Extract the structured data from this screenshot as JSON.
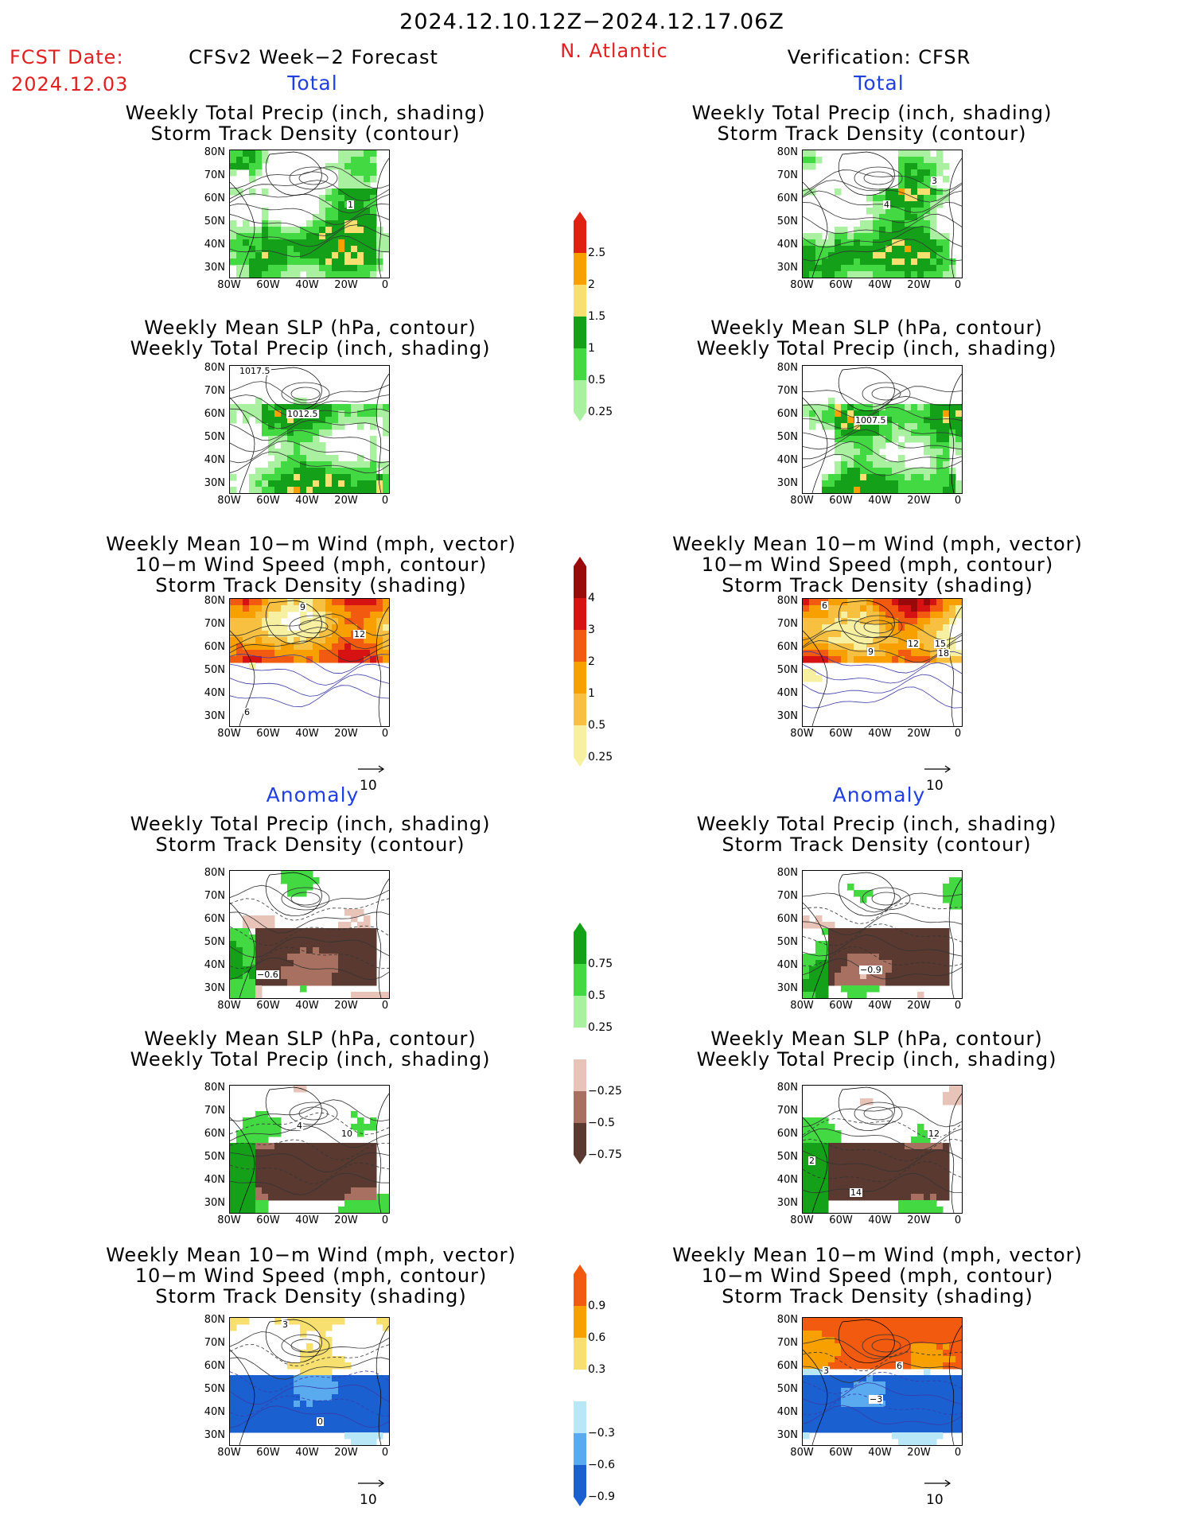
{
  "header": {
    "title": "2024.12.10.12Z−2024.12.17.06Z",
    "fcst_label": "FCST Date:",
    "fcst_date": "2024.12.03",
    "region": "N. Atlantic",
    "left_header": "CFSv2 Week−2 Forecast",
    "right_header": "Verification: CFSR"
  },
  "sections": {
    "total": "Total",
    "anomaly": "Anomaly"
  },
  "titles": {
    "precip_track": [
      "Weekly Total Precip (inch, shading)",
      "Storm Track Density (contour)"
    ],
    "slp_precip": [
      "Weekly Mean SLP (hPa, contour)",
      "Weekly Total Precip (inch, shading)"
    ],
    "wind_track": [
      "Weekly Mean 10−m Wind (mph, vector)",
      "10−m Wind Speed (mph, contour)",
      "Storm Track Density (shading)"
    ]
  },
  "axes": {
    "lat": [
      "80N",
      "70N",
      "60N",
      "50N",
      "40N",
      "30N"
    ],
    "lon": [
      "80W",
      "60W",
      "40W",
      "20W",
      "0"
    ]
  },
  "vector_ref": "10",
  "colorbars": {
    "precip_total": {
      "labels": [
        "2.5",
        "2",
        "1.5",
        "1",
        "0.5",
        "0.25"
      ],
      "colors": [
        "#e02010",
        "#f7a000",
        "#f7e070",
        "#15a01a",
        "#43d943",
        "#a9f0a0"
      ]
    },
    "track_total": {
      "labels": [
        "4",
        "3",
        "2",
        "1",
        "0.5",
        "0.25"
      ],
      "colors": [
        "#9a0a0a",
        "#d71212",
        "#f25a10",
        "#f7a000",
        "#f7c040",
        "#f7f0a0"
      ]
    },
    "precip_anom": {
      "labels": [
        "0.75",
        "0.5",
        "0.25",
        "−0.25",
        "−0.5",
        "−0.75"
      ],
      "colors": [
        "#15a01a",
        "#43d943",
        "#a9f0a0",
        "#ffffff",
        "#e8c4b8",
        "#a87060",
        "#5a3a30"
      ]
    },
    "track_anom": {
      "labels": [
        "0.9",
        "0.6",
        "0.3",
        "−0.3",
        "−0.6",
        "−0.9"
      ],
      "colors": [
        "#f25a10",
        "#f7a000",
        "#f7e070",
        "#ffffff",
        "#b8e8f8",
        "#5aaaf0",
        "#1a60d0"
      ]
    }
  },
  "contour_labels": {
    "l1": "1",
    "r1": "4",
    "r1b": "3",
    "l2": "1012.5",
    "l2b": "1017.5",
    "r2": "1007.5",
    "l3": "12",
    "l3b": "9",
    "l3c": "6",
    "r3": "12",
    "r3b": "15",
    "r3c": "18",
    "r3d": "9",
    "r3e": "6",
    "l4": "−0.6",
    "r4": "−0.9",
    "l5": "10",
    "l5b": "4",
    "r5": "12",
    "r5b": "14",
    "r5c": "2",
    "l6": "0",
    "l6b": "3",
    "r6": "−3",
    "r6b": "6",
    "r6c": "3"
  },
  "colors": {
    "title_red": "#e02020",
    "section_blue": "#1f3fe0"
  }
}
